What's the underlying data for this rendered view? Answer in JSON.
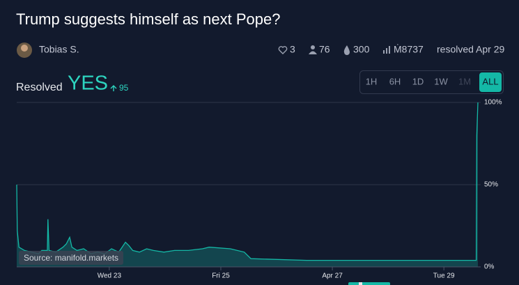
{
  "header": {
    "title": "Trump suggests himself as next Pope?",
    "author": "Tobias S.",
    "stats": {
      "likes": "3",
      "traders": "76",
      "liquidity": "300",
      "volume": "Ṁ8737",
      "resolved": "resolved Apr 29"
    }
  },
  "resolution": {
    "label": "Resolved",
    "outcome": "YES",
    "change": "95"
  },
  "time_range": {
    "options": [
      "1H",
      "6H",
      "1D",
      "1W",
      "1M",
      "ALL"
    ],
    "selected": "ALL",
    "disabled": [
      "1M"
    ]
  },
  "chart_data": {
    "type": "area",
    "x": [
      21.34,
      21.35,
      21.38,
      21.48,
      21.73,
      21.79,
      21.89,
      21.9,
      21.92,
      22.04,
      22.17,
      22.23,
      22.29,
      22.33,
      22.42,
      22.54,
      22.67,
      22.79,
      22.92,
      23.04,
      23.17,
      23.23,
      23.29,
      23.35,
      23.42,
      23.54,
      23.67,
      23.79,
      23.98,
      24.17,
      24.42,
      24.67,
      24.79,
      25.17,
      25.42,
      25.54,
      26.54,
      27.29,
      28.54,
      29.58,
      29.59,
      29.61
    ],
    "values": [
      50,
      22,
      12,
      10,
      8,
      10,
      10,
      29,
      10,
      9,
      12,
      14,
      18,
      12,
      10,
      11,
      8,
      9,
      8,
      11,
      9,
      12,
      15,
      13,
      10,
      9,
      11,
      10,
      9,
      10,
      10,
      11,
      12,
      11,
      9,
      5,
      4,
      4,
      4,
      4,
      80,
      100
    ],
    "color": "#14b8a6",
    "xlim": [
      21.34,
      29.61
    ],
    "xticks": [
      {
        "value": 23,
        "label": "Wed 23"
      },
      {
        "value": 25,
        "label": "Fri 25"
      },
      {
        "value": 27,
        "label": "Apr 27"
      },
      {
        "value": 29,
        "label": "Tue 29"
      }
    ],
    "ylim": [
      0,
      100
    ],
    "yticks": [
      {
        "value": 0,
        "label": "0%"
      },
      {
        "value": 50,
        "label": "50%"
      },
      {
        "value": 100,
        "label": "100%"
      }
    ],
    "grid": true,
    "annotation": "Source: manifold.markets"
  }
}
